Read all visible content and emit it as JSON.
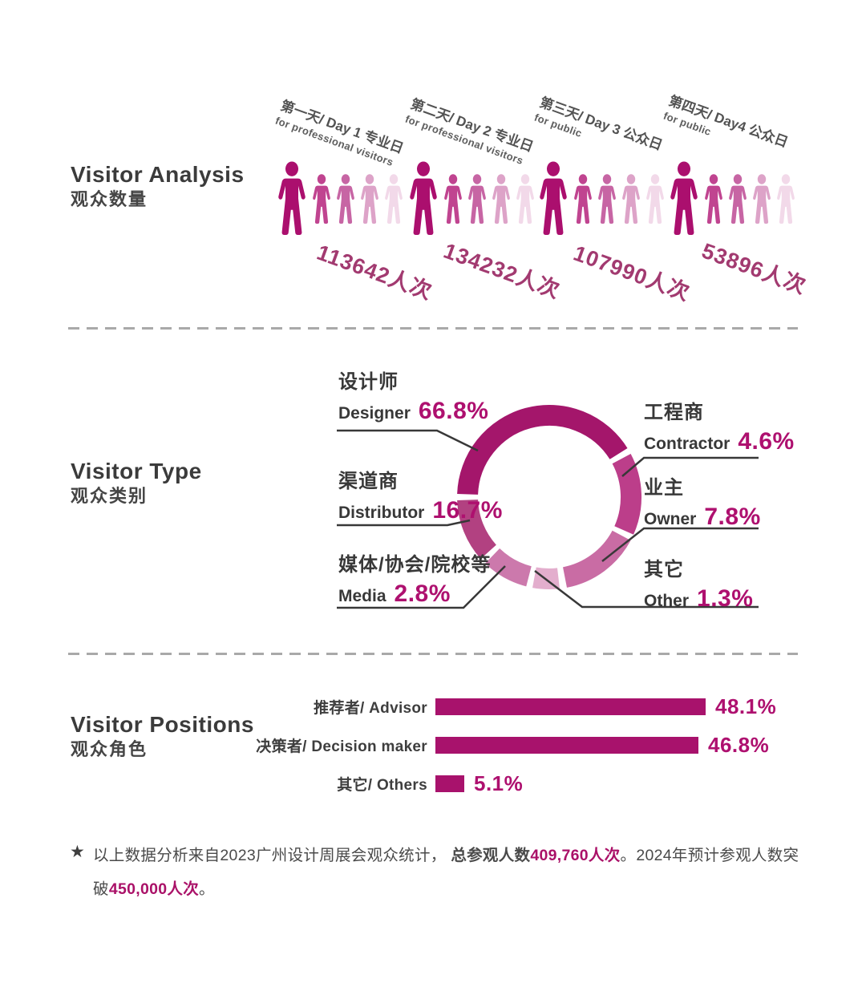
{
  "sections": {
    "analysis": {
      "title": "Visitor Analysis",
      "subtitle": "观众数量",
      "days": [
        {
          "label": "第一天/ Day 1 专业日",
          "sublabel": "for professional visitors",
          "count": "113642人次",
          "visitors": 113642
        },
        {
          "label": "第二天/ Day 2 专业日",
          "sublabel": "for professional visitors",
          "count": "134232人次",
          "visitors": 134232
        },
        {
          "label": "第三天/ Day 3 公众日",
          "sublabel": "for public",
          "count": "107990人次",
          "visitors": 107990
        },
        {
          "label": "第四天/ Day4 公众日",
          "sublabel": "for public",
          "count": "53896人次",
          "visitors": 53896
        }
      ],
      "icon_colors": [
        "#ab0f6e",
        "#c04490",
        "#c765a4",
        "#dda3c8",
        "#f2d9e9"
      ]
    },
    "type": {
      "title": "Visitor Type",
      "subtitle": "观众类别",
      "segments": [
        {
          "zh": "设计师",
          "en": "Designer",
          "value": "66.8%",
          "pct": 66.8,
          "color": "#a4166b"
        },
        {
          "zh": "渠道商",
          "en": "Distributor",
          "value": "16.7%",
          "pct": 16.7,
          "color": "#b24181"
        },
        {
          "zh": "媒体/协会/院校等",
          "en": "Media",
          "value": "2.8%",
          "pct": 2.8,
          "color": "#cc79ac"
        },
        {
          "zh": "工程商",
          "en": "Contractor",
          "value": "4.6%",
          "pct": 4.6,
          "color": "#bc3e8a"
        },
        {
          "zh": "业主",
          "en": "Owner",
          "value": "7.8%",
          "pct": 7.8,
          "color": "#c96ca4"
        },
        {
          "zh": "其它",
          "en": "Other",
          "value": "1.3%",
          "pct": 1.3,
          "color": "#e3aecd"
        }
      ]
    },
    "positions": {
      "title": "Visitor Positions",
      "subtitle": "观众角色",
      "bars": [
        {
          "label": "推荐者/ Advisor",
          "value": 48.1,
          "display": "48.1%"
        },
        {
          "label": "决策者/ Decision maker",
          "value": 46.8,
          "display": "46.8%"
        },
        {
          "label": "其它/ Others",
          "value": 5.1,
          "display": "5.1%"
        }
      ],
      "bar_color": "#a8126c"
    },
    "footnote": {
      "star": "★",
      "parts": [
        {
          "text": "以上数据分析来自2023广州设计周展会观众统计， ",
          "style": "n"
        },
        {
          "text": "总参观人数",
          "style": "b"
        },
        {
          "text": "409,760人次",
          "style": "em"
        },
        {
          "text": "。2024年预计参观人数突破",
          "style": "n"
        },
        {
          "text": "450,000人次",
          "style": "em"
        },
        {
          "text": "。",
          "style": "n"
        }
      ]
    }
  },
  "colors": {
    "accent_magenta": "#a8126c",
    "value_text": "#ae106f",
    "count_text": "#a23a70",
    "title_gray": "#3b3b3b",
    "leader_line": "#383838",
    "dash_gray": "#a9a9a9"
  },
  "chart_data": [
    {
      "type": "bar",
      "style": "pictogram-people",
      "title": "Visitor Analysis 观众数量",
      "categories": [
        "第一天/ Day 1 专业日 (for professional visitors)",
        "第二天/ Day 2 专业日 (for professional visitors)",
        "第三天/ Day 3 公众日 (for public)",
        "第四天/ Day4 公众日 (for public)"
      ],
      "values": [
        113642,
        134232,
        107990,
        53896
      ],
      "unit": "人次"
    },
    {
      "type": "pie",
      "style": "donut",
      "title": "Visitor Type 观众类别",
      "labels": [
        "设计师 Designer",
        "渠道商 Distributor",
        "媒体/协会/院校等 Media",
        "工程商 Contractor",
        "业主 Owner",
        "其它 Other"
      ],
      "values": [
        66.8,
        16.7,
        2.8,
        4.6,
        7.8,
        1.3
      ],
      "unit": "%",
      "legend_position": "around-callouts"
    },
    {
      "type": "bar",
      "orientation": "horizontal",
      "title": "Visitor Positions 观众角色",
      "categories": [
        "推荐者/ Advisor",
        "决策者/ Decision maker",
        "其它/ Others"
      ],
      "values": [
        48.1,
        46.8,
        5.1
      ],
      "unit": "%",
      "xlim": [
        0,
        50
      ],
      "grid": false
    }
  ]
}
